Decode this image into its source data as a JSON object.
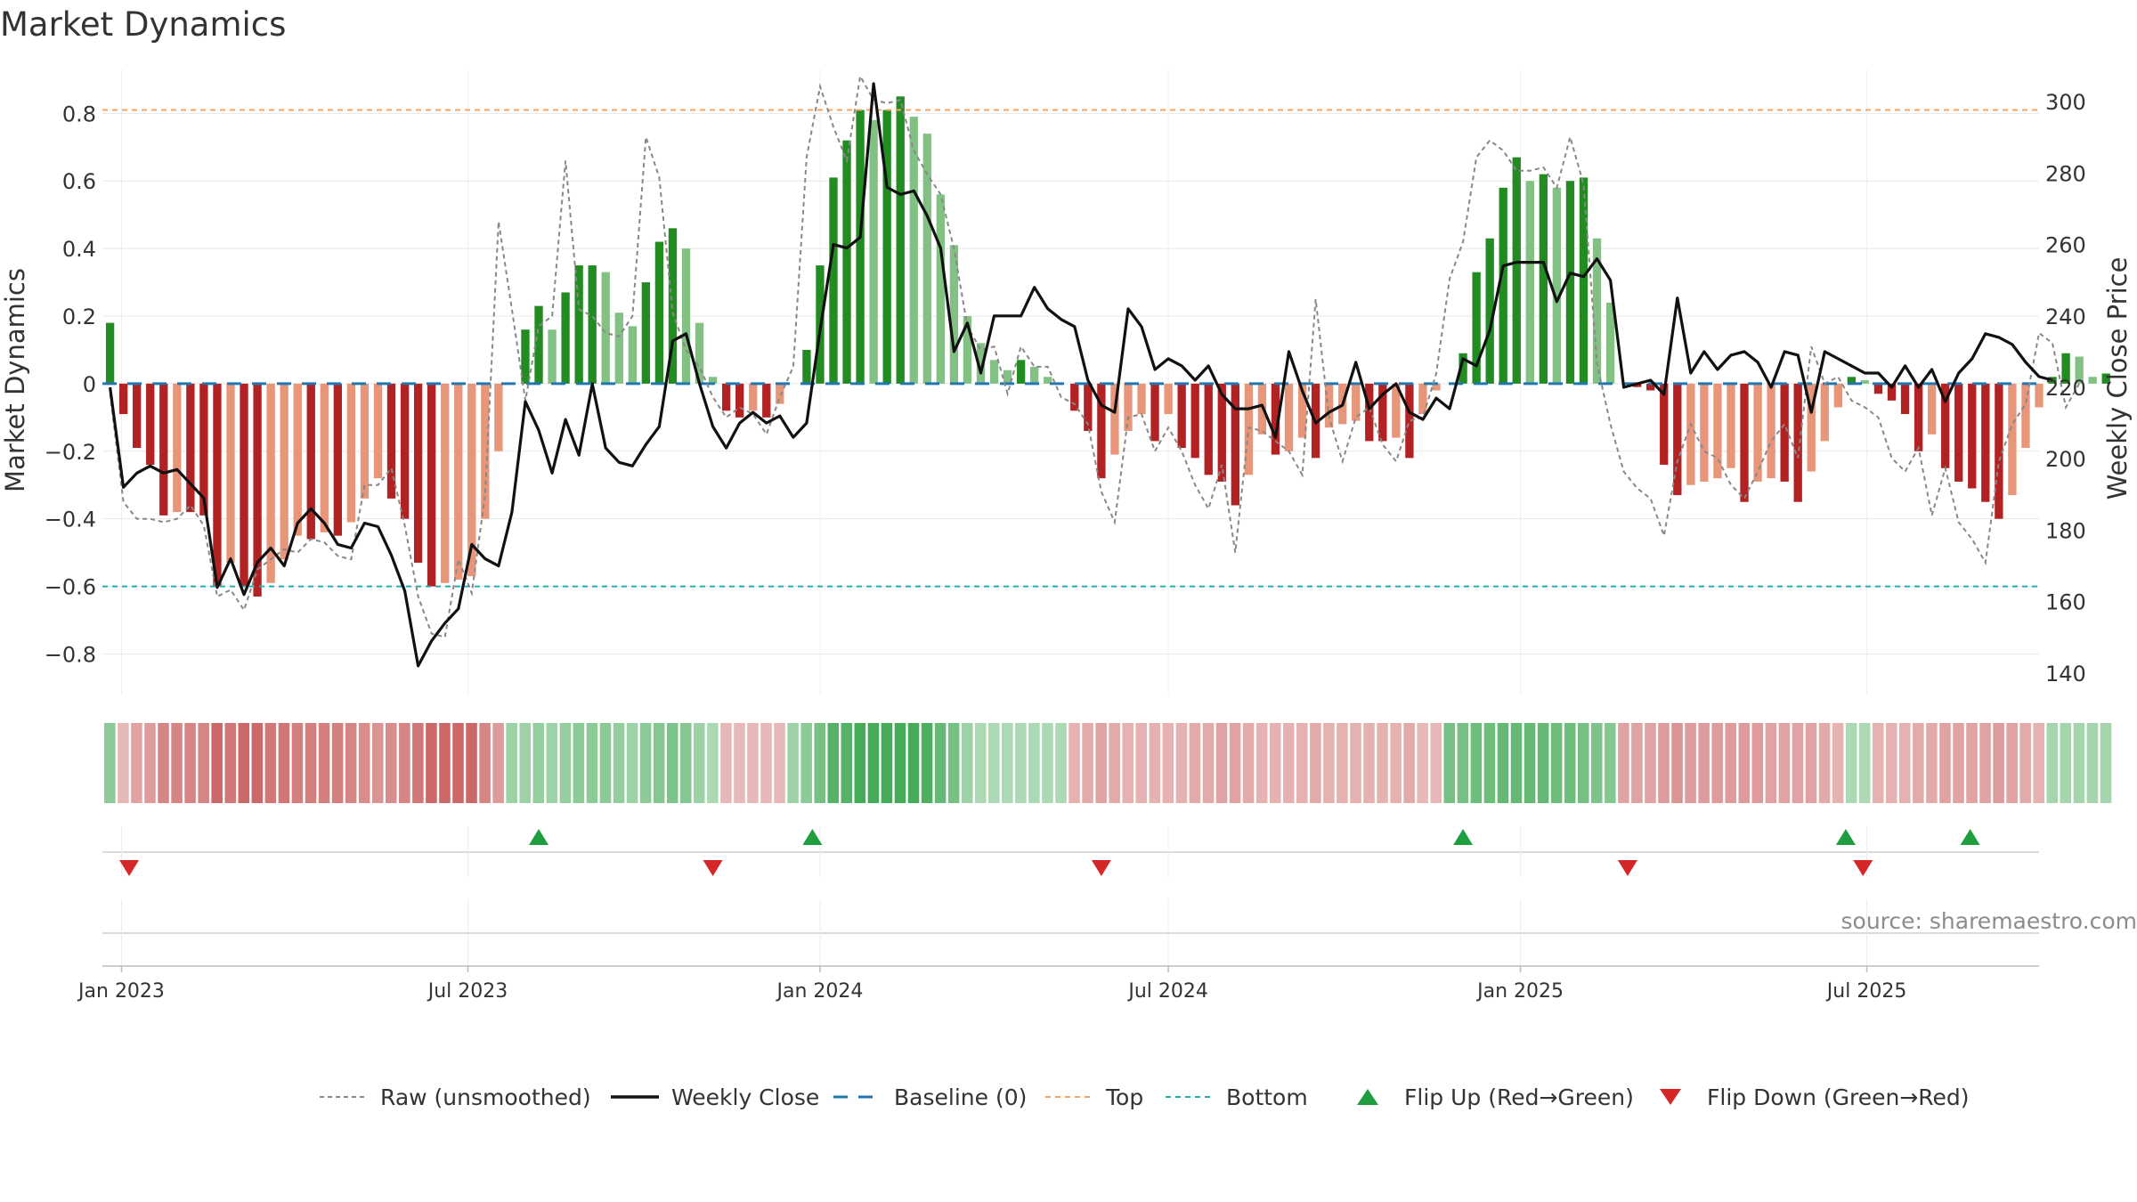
{
  "chart_data": {
    "type": "bar",
    "title": "Market Dynamics",
    "y_left_label": "Market Dynamics",
    "y_right_label": "Weekly Close Price",
    "y_left_ticks": [
      "0.8",
      "0.6",
      "0.4",
      "0.2",
      "0",
      "−0.2",
      "−0.4",
      "−0.6",
      "−0.8"
    ],
    "y_left_tick_values": [
      0.8,
      0.6,
      0.4,
      0.2,
      0,
      -0.2,
      -0.4,
      -0.6,
      -0.8
    ],
    "y_left_range": [
      -0.92,
      0.93
    ],
    "y_right_ticks": [
      "300",
      "280",
      "260",
      "240",
      "220",
      "200",
      "180",
      "160",
      "140"
    ],
    "y_right_tick_values": [
      300,
      280,
      260,
      240,
      220,
      200,
      180,
      160,
      140
    ],
    "y_right_range": [
      134,
      309
    ],
    "x_ticks": [
      "Jan 2023",
      "Jul 2023",
      "Jan 2024",
      "Jul 2024",
      "Jan 2025",
      "Jul 2025"
    ],
    "x_tick_dates": [
      "2023-01-01",
      "2023-07-01",
      "2024-01-01",
      "2024-07-01",
      "2025-01-01",
      "2025-07-01"
    ],
    "x_range": [
      "2022-12-22",
      "2025-09-29"
    ],
    "top_level": 0.81,
    "bottom_level": -0.6,
    "baseline": 0,
    "grid": true,
    "colors": {
      "green_strong": "#228b22",
      "green_light": "#82c083",
      "red_strong": "#b22222",
      "red_light": "#e8967a",
      "close": "#111111",
      "raw": "#888888",
      "baseline": "#1f77b4",
      "top": "#f4a460",
      "bottom": "#20b2aa",
      "flip_up": "#1e9e3e",
      "flip_down": "#d62728"
    },
    "series": [
      {
        "name": "Market Dynamics",
        "start": "2022-12-26",
        "step_days": 7,
        "values": [
          0.18,
          -0.09,
          -0.19,
          -0.24,
          -0.39,
          -0.38,
          -0.38,
          -0.39,
          -0.6,
          -0.53,
          -0.6,
          -0.63,
          -0.59,
          -0.52,
          -0.45,
          -0.46,
          -0.44,
          -0.45,
          -0.41,
          -0.34,
          -0.28,
          -0.34,
          -0.4,
          -0.53,
          -0.6,
          -0.59,
          -0.58,
          -0.57,
          -0.4,
          -0.2,
          0.0,
          0.16,
          0.23,
          0.16,
          0.27,
          0.35,
          0.35,
          0.33,
          0.21,
          0.17,
          0.3,
          0.42,
          0.46,
          0.4,
          0.18,
          0.02,
          -0.08,
          -0.1,
          -0.08,
          -0.1,
          -0.06,
          0.0,
          0.1,
          0.35,
          0.61,
          0.72,
          0.81,
          0.78,
          0.81,
          0.85,
          0.79,
          0.74,
          0.56,
          0.41,
          0.2,
          0.12,
          0.07,
          0.04,
          0.07,
          0.05,
          0.02,
          0.0,
          -0.08,
          -0.14,
          -0.28,
          -0.21,
          -0.14,
          -0.09,
          -0.17,
          -0.09,
          -0.19,
          -0.22,
          -0.27,
          -0.29,
          -0.36,
          -0.27,
          -0.15,
          -0.21,
          -0.2,
          -0.16,
          -0.22,
          -0.13,
          -0.12,
          -0.11,
          -0.17,
          -0.17,
          -0.16,
          -0.22,
          -0.09,
          -0.02,
          0.0,
          0.09,
          0.33,
          0.43,
          0.58,
          0.67,
          0.6,
          0.62,
          0.58,
          0.6,
          0.61,
          0.43,
          0.24,
          0.0,
          -0.01,
          -0.02,
          -0.24,
          -0.33,
          -0.3,
          -0.29,
          -0.28,
          -0.25,
          -0.35,
          -0.29,
          -0.28,
          -0.29,
          -0.35,
          -0.26,
          -0.17,
          -0.07,
          0.02,
          0.01,
          -0.03,
          -0.05,
          -0.09,
          -0.2,
          -0.15,
          -0.25,
          -0.29,
          -0.31,
          -0.35,
          -0.4,
          -0.33,
          -0.19,
          -0.07,
          0.02,
          0.09,
          0.08,
          0.02,
          0.03
        ]
      },
      {
        "name": "Raw (unsmoothed)",
        "values": [
          -0.03,
          -0.35,
          -0.4,
          -0.4,
          -0.41,
          -0.4,
          -0.36,
          -0.42,
          -0.63,
          -0.61,
          -0.67,
          -0.55,
          -0.52,
          -0.49,
          -0.5,
          -0.46,
          -0.47,
          -0.51,
          -0.52,
          -0.3,
          -0.3,
          -0.25,
          -0.42,
          -0.63,
          -0.74,
          -0.75,
          -0.52,
          -0.62,
          -0.33,
          0.48,
          0.22,
          -0.05,
          0.17,
          0.2,
          0.66,
          0.22,
          0.2,
          0.15,
          0.14,
          0.2,
          0.73,
          0.61,
          0.21,
          0.1,
          0.05,
          -0.04,
          -0.1,
          -0.07,
          -0.09,
          -0.15,
          -0.04,
          0.05,
          0.67,
          0.88,
          0.76,
          0.66,
          0.91,
          0.84,
          0.83,
          0.84,
          0.69,
          0.62,
          0.56,
          0.4,
          0.17,
          0.1,
          0.11,
          -0.03,
          0.11,
          0.05,
          0.05,
          -0.04,
          -0.06,
          -0.12,
          -0.32,
          -0.41,
          -0.1,
          -0.09,
          -0.2,
          -0.13,
          -0.2,
          -0.3,
          -0.37,
          -0.24,
          -0.5,
          -0.13,
          -0.14,
          -0.17,
          -0.2,
          -0.27,
          0.25,
          -0.1,
          -0.23,
          -0.1,
          -0.07,
          -0.18,
          -0.23,
          -0.11,
          -0.1,
          0.03,
          0.31,
          0.42,
          0.67,
          0.72,
          0.69,
          0.63,
          0.63,
          0.64,
          0.58,
          0.73,
          0.59,
          0.06,
          -0.12,
          -0.26,
          -0.31,
          -0.34,
          -0.45,
          -0.23,
          -0.12,
          -0.2,
          -0.22,
          -0.3,
          -0.34,
          -0.26,
          -0.17,
          -0.12,
          -0.22,
          0.11,
          0.0,
          0.02,
          -0.05,
          -0.07,
          -0.1,
          -0.22,
          -0.26,
          -0.19,
          -0.39,
          -0.25,
          -0.41,
          -0.46,
          -0.53,
          -0.23,
          -0.12,
          -0.06,
          0.15,
          0.12,
          -0.07,
          0.0
        ]
      },
      {
        "name": "Weekly Close",
        "values": [
          220,
          192,
          196,
          198,
          196,
          197,
          193,
          189,
          164,
          172,
          162,
          171,
          175,
          170,
          182,
          186,
          182,
          176,
          175,
          182,
          181,
          173,
          163,
          142,
          149,
          154,
          158,
          176,
          172,
          170,
          185,
          216,
          208,
          196,
          211,
          201,
          221,
          203,
          199,
          198,
          204,
          209,
          233,
          235,
          221,
          209,
          203,
          210,
          213,
          210,
          212,
          206,
          210,
          236,
          260,
          259,
          262,
          305,
          276,
          274,
          275,
          268,
          259,
          230,
          238,
          224,
          240,
          240,
          240,
          248,
          242,
          239,
          237,
          222,
          215,
          213,
          242,
          237,
          225,
          228,
          226,
          222,
          226,
          218,
          214,
          214,
          215,
          206,
          230,
          219,
          210,
          213,
          215,
          227,
          214,
          218,
          221,
          213,
          211,
          217,
          214,
          228,
          226,
          236,
          254,
          255,
          255,
          255,
          244,
          252,
          251,
          256,
          250,
          220,
          221,
          222,
          218,
          245,
          224,
          230,
          225,
          229,
          230,
          227,
          220,
          230,
          229,
          213,
          230,
          228,
          226,
          224,
          224,
          220,
          226,
          220,
          225,
          216,
          224,
          228,
          235,
          234,
          232,
          227,
          223,
          222
        ]
      }
    ],
    "regime_strip": {
      "note": "color intensity per week; positive = green, negative = red",
      "values": [
        0.4,
        -0.15,
        -0.3,
        -0.35,
        -0.5,
        -0.5,
        -0.5,
        -0.5,
        -0.7,
        -0.6,
        -0.7,
        -0.7,
        -0.6,
        -0.6,
        -0.55,
        -0.55,
        -0.55,
        -0.55,
        -0.5,
        -0.45,
        -0.4,
        -0.45,
        -0.5,
        -0.6,
        -0.7,
        -0.7,
        -0.7,
        -0.7,
        -0.5,
        -0.35,
        0.3,
        0.3,
        0.35,
        0.3,
        0.35,
        0.4,
        0.4,
        0.4,
        0.35,
        0.3,
        0.4,
        0.45,
        0.5,
        0.45,
        0.3,
        0.2,
        -0.15,
        -0.15,
        -0.15,
        -0.15,
        -0.15,
        0.3,
        0.4,
        0.55,
        0.75,
        0.75,
        0.85,
        0.85,
        0.85,
        0.85,
        0.85,
        0.8,
        0.65,
        0.55,
        0.3,
        0.2,
        0.2,
        0.2,
        0.2,
        0.2,
        0.2,
        0.2,
        -0.2,
        -0.25,
        -0.3,
        -0.25,
        -0.2,
        -0.2,
        -0.2,
        -0.2,
        -0.2,
        -0.25,
        -0.25,
        -0.3,
        -0.3,
        -0.25,
        -0.2,
        -0.2,
        -0.2,
        -0.2,
        -0.25,
        -0.2,
        -0.2,
        -0.2,
        -0.2,
        -0.2,
        -0.2,
        -0.25,
        -0.15,
        -0.15,
        0.55,
        0.55,
        0.6,
        0.6,
        0.65,
        0.65,
        0.65,
        0.65,
        0.6,
        0.6,
        0.55,
        0.5,
        0.45,
        -0.3,
        -0.3,
        -0.3,
        -0.35,
        -0.4,
        -0.35,
        -0.35,
        -0.35,
        -0.35,
        -0.35,
        -0.35,
        -0.3,
        -0.3,
        -0.3,
        -0.3,
        -0.25,
        -0.2,
        0.2,
        0.2,
        -0.2,
        -0.2,
        -0.2,
        -0.25,
        -0.25,
        -0.3,
        -0.3,
        -0.3,
        -0.3,
        -0.35,
        -0.3,
        -0.25,
        -0.2,
        0.25,
        0.25,
        0.25,
        0.25,
        0.25
      ]
    },
    "flip_up_dates": [
      "2023-08-07",
      "2023-12-28",
      "2024-12-02",
      "2025-06-20",
      "2025-08-24"
    ],
    "flip_down_dates": [
      "2023-01-05",
      "2023-11-06",
      "2024-05-27",
      "2025-02-26",
      "2025-06-29"
    ],
    "legend": [
      {
        "key": "raw",
        "label": "Raw (unsmoothed)"
      },
      {
        "key": "close",
        "label": "Weekly Close"
      },
      {
        "key": "baseline",
        "label": "Baseline (0)"
      },
      {
        "key": "top",
        "label": "Top"
      },
      {
        "key": "bottom",
        "label": "Bottom"
      },
      {
        "key": "flip_up",
        "label": "Flip Up (Red→Green)"
      },
      {
        "key": "flip_down",
        "label": "Flip Down (Green→Red)"
      }
    ],
    "source": "source: sharemaestro.com"
  }
}
